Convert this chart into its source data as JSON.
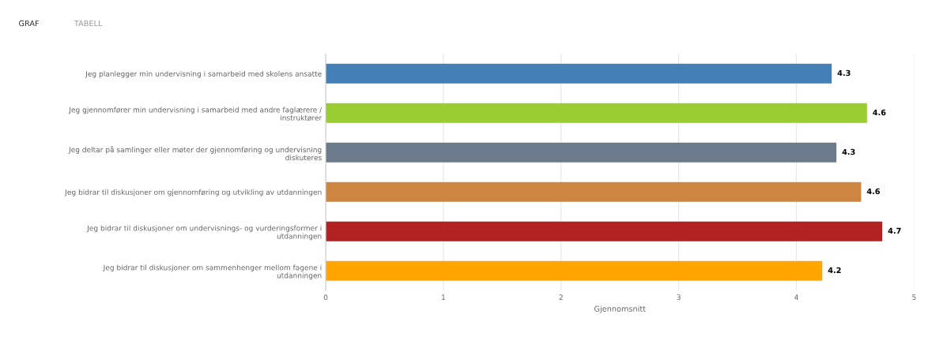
{
  "chart_data": {
    "type": "bar",
    "orientation": "horizontal",
    "categories": [
      "Jeg planlegger min undervisning i samarbeid med skolens ansatte",
      "Jeg gjennomfører min undervisning i samarbeid med andre faglærere /\ninstruktører",
      "Jeg deltar på samlinger eller møter der gjennomføring og undervisning\ndiskuteres",
      "Jeg bidrar til diskusjoner om gjennomføring og utvikling av utdanningen",
      "Jeg bidrar til diskusjoner om undervisnings- og vurderingsformer i\nutdanningen",
      "Jeg bidrar til diskusjoner om sammenhenger mellom fagene i\nutdanningen"
    ],
    "values": [
      4.3,
      4.6,
      4.34,
      4.55,
      4.73,
      4.22
    ],
    "value_labels": [
      "4.3",
      "4.6",
      "4.3",
      "4.6",
      "4.7",
      "4.2"
    ],
    "colors": [
      "#4480b8",
      "#9acd32",
      "#6c7b8b",
      "#cd853f",
      "#b22222",
      "#ffa500"
    ],
    "xlim": [
      0,
      5
    ],
    "xticks": [
      0,
      1,
      2,
      3,
      4,
      5
    ],
    "xlabel": "Gjennomsnitt",
    "grid": "x",
    "annotations": [
      "GRAF",
      "TABELL"
    ]
  }
}
